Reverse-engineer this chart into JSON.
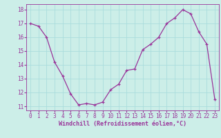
{
  "x": [
    0,
    1,
    2,
    3,
    4,
    5,
    6,
    7,
    8,
    9,
    10,
    11,
    12,
    13,
    14,
    15,
    16,
    17,
    18,
    19,
    20,
    21,
    22,
    23
  ],
  "y": [
    17.0,
    16.8,
    16.0,
    14.2,
    13.2,
    11.9,
    11.1,
    11.2,
    11.1,
    11.3,
    12.2,
    12.6,
    13.6,
    13.7,
    15.1,
    15.5,
    16.0,
    17.0,
    17.4,
    18.0,
    17.7,
    16.4,
    15.5,
    11.5
  ],
  "line_color": "#993399",
  "bg_color": "#cceee8",
  "grid_color": "#aadddd",
  "xlabel": "Windchill (Refroidissement éolien,°C)",
  "xlabel_color": "#993399",
  "tick_color": "#993399",
  "ylim_min": 10.7,
  "ylim_max": 18.4,
  "xlim_min": -0.5,
  "xlim_max": 23.5,
  "yticks": [
    11,
    12,
    13,
    14,
    15,
    16,
    17,
    18
  ],
  "xticks": [
    0,
    1,
    2,
    3,
    4,
    5,
    6,
    7,
    8,
    9,
    10,
    11,
    12,
    13,
    14,
    15,
    16,
    17,
    18,
    19,
    20,
    21,
    22,
    23
  ],
  "tick_fontsize": 5.5,
  "xlabel_fontsize": 6.0
}
